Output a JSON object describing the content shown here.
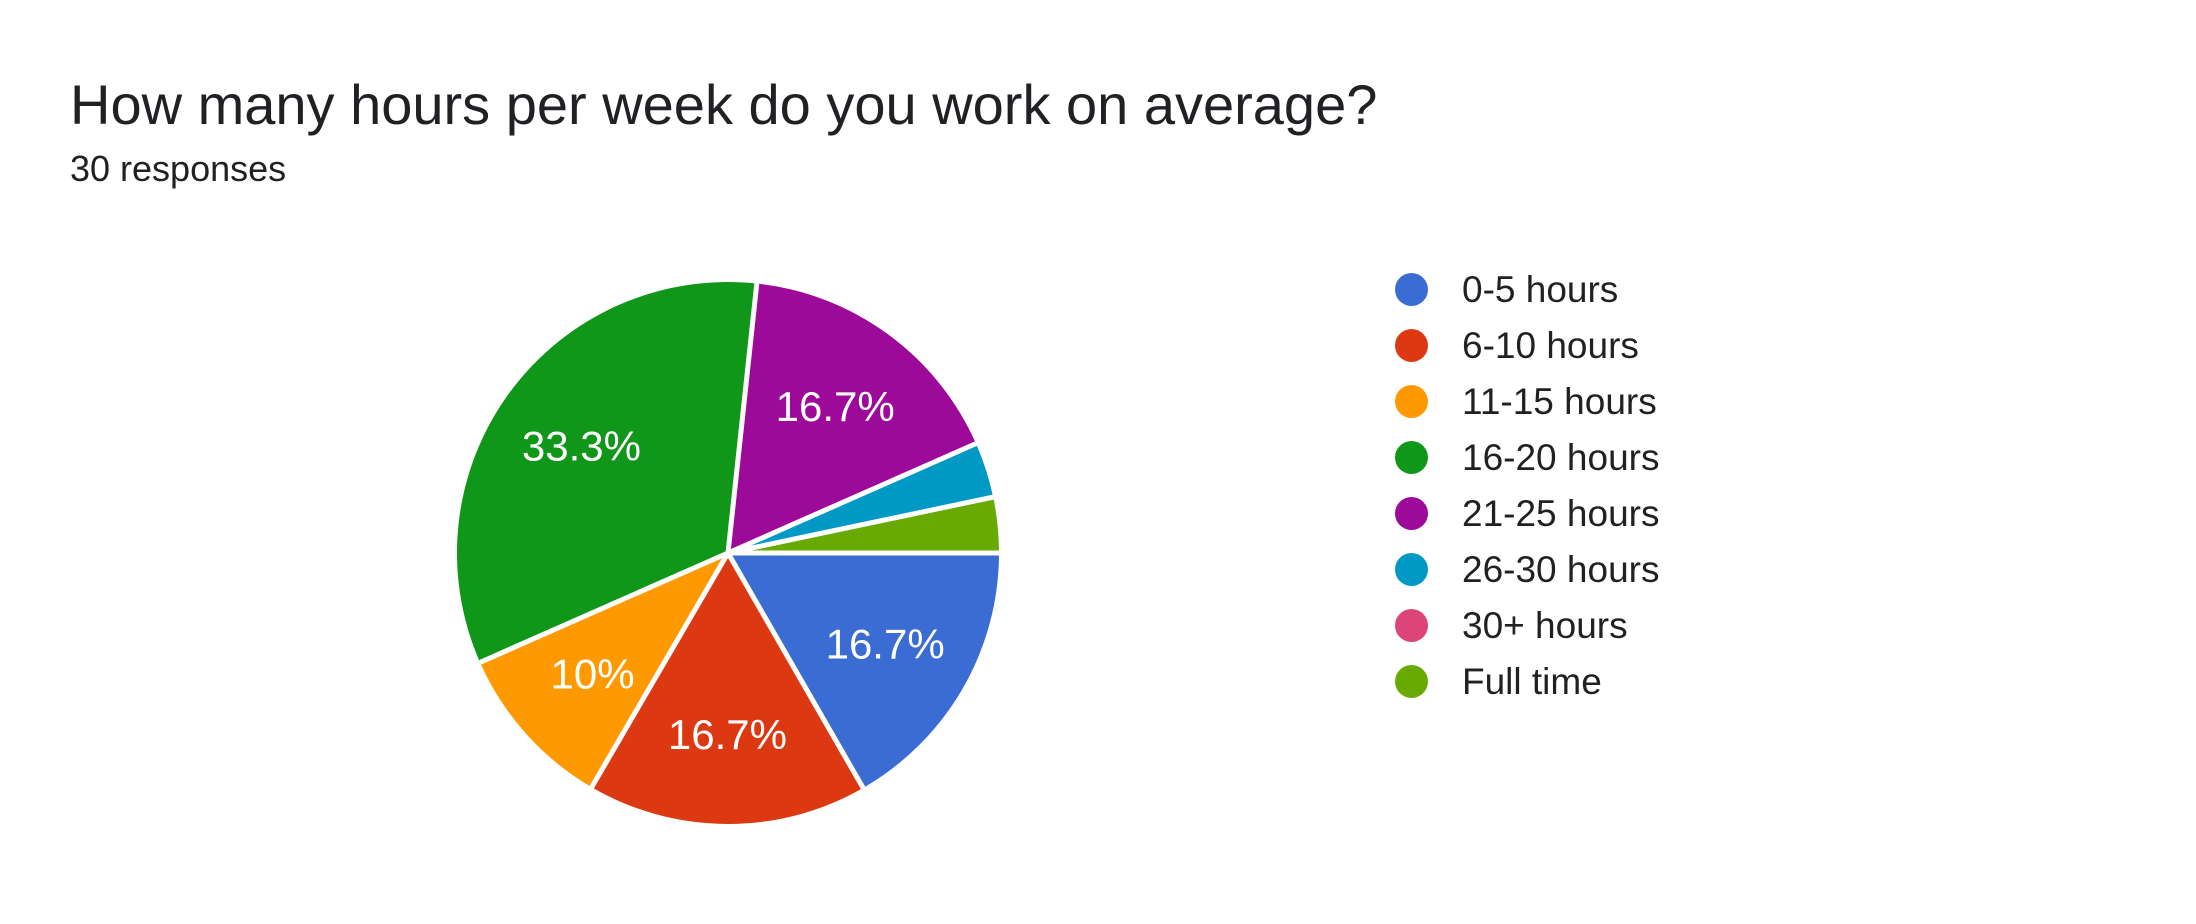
{
  "header": {
    "title": "How many hours per week do you work on average?",
    "subtitle": "30 responses"
  },
  "chart_data": {
    "type": "pie",
    "title": "How many hours per week do you work on average?",
    "subtitle": "30 responses",
    "legend_position": "right",
    "start_angle_deg": 0,
    "direction": "clockwise",
    "separator_color": "#ffffff",
    "label_color": "#ffffff",
    "slices": [
      {
        "label": "0-5 hours",
        "pct": 16.7,
        "shown_label": "16.7%",
        "color": "#3b6cd3"
      },
      {
        "label": "6-10 hours",
        "pct": 16.7,
        "shown_label": "16.7%",
        "color": "#dc3912"
      },
      {
        "label": "11-15 hours",
        "pct": 10,
        "shown_label": "10%",
        "color": "#ff9900"
      },
      {
        "label": "16-20 hours",
        "pct": 33.3,
        "shown_label": "33.3%",
        "color": "#109618"
      },
      {
        "label": "21-25 hours",
        "pct": 16.7,
        "shown_label": "16.7%",
        "color": "#9d0a99"
      },
      {
        "label": "26-30 hours",
        "pct": 3.3,
        "shown_label": "",
        "color": "#0099c6"
      },
      {
        "label": "30+ hours",
        "pct": 0,
        "shown_label": "",
        "color": "#dd4477"
      },
      {
        "label": "Full time",
        "pct": 3.3,
        "shown_label": "",
        "color": "#68aa01"
      }
    ]
  }
}
